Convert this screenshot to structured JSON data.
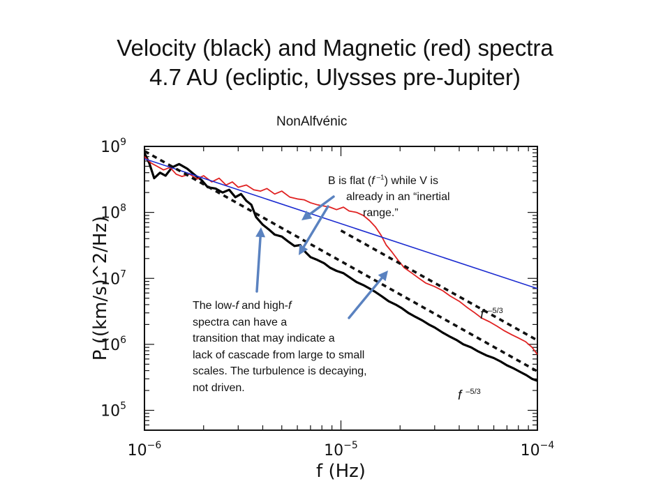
{
  "title_line1": "Velocity (black) and Magnetic (red) spectra",
  "title_line2": "4.7 AU (ecliptic, Ulysses pre-Jupiter)",
  "subtitle": "NonAlfvénic",
  "annotations": {
    "flat": {
      "line1_a": "B is flat (",
      "line1_f": "f",
      "line1_exp": " –1",
      "line1_b": ") while V is",
      "line2": "already in an “inertial",
      "line3": "range.”"
    },
    "transition": {
      "l1_a": "The low-",
      "l1_b": " and high-",
      "f": "f",
      "line2": "spectra can have a",
      "line3": "transition that may indicate a",
      "line4": "lack of cascade from large to small",
      "line5": "scales.  The turbulence is decaying,",
      "line6": "not driven."
    },
    "slope_upper": {
      "f": "f",
      "exp": " –5/3"
    },
    "slope_lower": {
      "f": "f",
      "exp": " –5/3"
    }
  },
  "colors": {
    "velocity": "#000000",
    "magnetic": "#e02020",
    "reference_line": "#1a2ad0",
    "arrows": "#5a82c0"
  },
  "chart_data": {
    "type": "line",
    "xscale": "log",
    "yscale": "log",
    "xlabel": "f  (Hz)",
    "ylabel": "P  ((km/s)^2/Hz)",
    "xlim": [
      1e-06,
      0.0001
    ],
    "ylim": [
      50000.0,
      1000000000.0
    ],
    "x_ticks": [
      {
        "value": 1e-06,
        "mant": "10",
        "exp": "−6"
      },
      {
        "value": 1e-05,
        "mant": "10",
        "exp": "−5"
      },
      {
        "value": 0.0001,
        "mant": "10",
        "exp": "−4"
      }
    ],
    "y_ticks": [
      {
        "value": 100000.0,
        "mant": "10",
        "exp": "5"
      },
      {
        "value": 1000000.0,
        "mant": "10",
        "exp": "6"
      },
      {
        "value": 10000000.0,
        "mant": "10",
        "exp": "7"
      },
      {
        "value": 100000000.0,
        "mant": "10",
        "exp": "8"
      },
      {
        "value": 1000000000.0,
        "mant": "10",
        "exp": "9"
      }
    ],
    "series": [
      {
        "key": "velocity",
        "style": "solid-thick",
        "x": [
          1e-06,
          1.06e-06,
          1.12e-06,
          1.2e-06,
          1.28e-06,
          1.38e-06,
          1.5e-06,
          1.65e-06,
          1.8e-06,
          1.95e-06,
          2.1e-06,
          2.3e-06,
          2.5e-06,
          2.7e-06,
          2.9e-06,
          3.1e-06,
          3.3e-06,
          3.5e-06,
          3.7e-06,
          4e-06,
          4.3e-06,
          4.6e-06,
          5e-06,
          5.4e-06,
          5.8e-06,
          6.2e-06,
          6.6e-06,
          7e-06,
          7.6e-06,
          8.2e-06,
          8.8e-06,
          9.5e-06,
          1.03e-05,
          1.1e-05,
          1.2e-05,
          1.3e-05,
          1.4e-05,
          1.5e-05,
          1.62e-05,
          1.75e-05,
          1.9e-05,
          2.05e-05,
          2.2e-05,
          2.4e-05,
          2.6e-05,
          2.8e-05,
          3e-05,
          3.3e-05,
          3.6e-05,
          3.9e-05,
          4.2e-05,
          4.6e-05,
          5e-05,
          5.5e-05,
          6e-05,
          6.5e-05,
          7e-05,
          7.6e-05,
          8.2e-05,
          8.8e-05,
          9.4e-05,
          0.0001
        ],
        "y": [
          800000000.0,
          550000000.0,
          330000000.0,
          400000000.0,
          360000000.0,
          480000000.0,
          540000000.0,
          460000000.0,
          370000000.0,
          310000000.0,
          240000000.0,
          230000000.0,
          200000000.0,
          220000000.0,
          170000000.0,
          190000000.0,
          150000000.0,
          130000000.0,
          85000000.0,
          65000000.0,
          55000000.0,
          46000000.0,
          43000000.0,
          36000000.0,
          31000000.0,
          32000000.0,
          25000000.0,
          21000000.0,
          19000000.0,
          17000000.0,
          14500000.0,
          13000000.0,
          12000000.0,
          10500000.0,
          8800000.0,
          7900000.0,
          7000000.0,
          6200000.0,
          5300000.0,
          4500000.0,
          4000000.0,
          3500000.0,
          3000000.0,
          2600000.0,
          2300000.0,
          2000000.0,
          1800000.0,
          1500000.0,
          1300000.0,
          1150000.0,
          1000000.0,
          900000.0,
          780000.0,
          680000.0,
          620000.0,
          550000.0,
          480000.0,
          430000.0,
          380000.0,
          340000.0,
          300000.0,
          280000.0
        ]
      },
      {
        "key": "magnetic",
        "style": "solid-thin",
        "x": [
          1e-06,
          1.08e-06,
          1.16e-06,
          1.25e-06,
          1.35e-06,
          1.45e-06,
          1.55e-06,
          1.7e-06,
          1.85e-06,
          2e-06,
          2.2e-06,
          2.4e-06,
          2.6e-06,
          2.8e-06,
          3e-06,
          3.3e-06,
          3.6e-06,
          3.9e-06,
          4.2e-06,
          4.6e-06,
          5e-06,
          5.5e-06,
          6e-06,
          6.5e-06,
          7e-06,
          7.6e-06,
          8.2e-06,
          8.8e-06,
          9.5e-06,
          1.03e-05,
          1.1e-05,
          1.2e-05,
          1.3e-05,
          1.4e-05,
          1.5e-05,
          1.6e-05,
          1.7e-05,
          1.82e-05,
          1.95e-05,
          2.1e-05,
          2.3e-05,
          2.5e-05,
          2.7e-05,
          3e-05,
          3.3e-05,
          3.6e-05,
          4e-05,
          4.4e-05,
          4.8e-05,
          5.2e-05,
          5.7e-05,
          6.2e-05,
          6.8e-05,
          7.4e-05,
          8e-05,
          8.7e-05,
          9.4e-05,
          0.0001
        ],
        "y": [
          700000000.0,
          560000000.0,
          500000000.0,
          440000000.0,
          480000000.0,
          380000000.0,
          350000000.0,
          380000000.0,
          320000000.0,
          360000000.0,
          290000000.0,
          330000000.0,
          260000000.0,
          290000000.0,
          240000000.0,
          260000000.0,
          220000000.0,
          210000000.0,
          230000000.0,
          190000000.0,
          210000000.0,
          170000000.0,
          160000000.0,
          155000000.0,
          140000000.0,
          130000000.0,
          125000000.0,
          120000000.0,
          110000000.0,
          120000000.0,
          105000000.0,
          100000000.0,
          90000000.0,
          75000000.0,
          60000000.0,
          45000000.0,
          32000000.0,
          25000000.0,
          19000000.0,
          14500000.0,
          12000000.0,
          10000000.0,
          8500000.0,
          7500000.0,
          6500000.0,
          5400000.0,
          4500000.0,
          3600000.0,
          3000000.0,
          2500000.0,
          2200000.0,
          1900000.0,
          1600000.0,
          1400000.0,
          1250000.0,
          1100000.0,
          900000.0,
          700000.0
        ]
      },
      {
        "key": "reference_flat",
        "style": "solid-thin",
        "x": [
          1e-06,
          0.0001
        ],
        "y": [
          650000000.0,
          7000000.0
        ]
      },
      {
        "key": "reference_upper",
        "style": "dashed",
        "x": [
          1e-05,
          0.0001
        ],
        "y": [
          53000000.0,
          1150000.0
        ]
      },
      {
        "key": "reference_lower",
        "style": "dashed",
        "x": [
          1e-06,
          0.0001
        ],
        "y": [
          850000000.0,
          390000.0
        ]
      }
    ]
  }
}
